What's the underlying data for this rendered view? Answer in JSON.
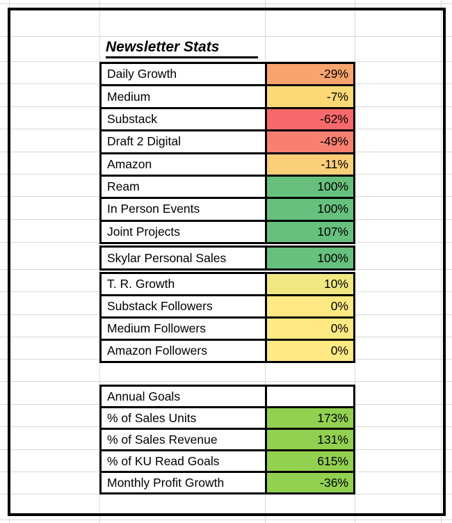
{
  "title": "Newsletter Stats",
  "colors": {
    "border_black": "#000000",
    "gridline_gray": "#d8d8d8",
    "scale_orange": "#F9A46F",
    "scale_gold": "#FDD976",
    "scale_red": "#F8696B",
    "scale_salmon": "#F88070",
    "scale_amber": "#FBCF78",
    "scale_green": "#67C07D",
    "scale_yellow_green": "#F0E783",
    "scale_pale_yellow": "#FFE983",
    "goal_lime": "#92D050",
    "empty_white": "#FFFFFF"
  },
  "tables": [
    {
      "name": "growth-stats",
      "rows": [
        {
          "label": "Daily Growth",
          "value": "-29%",
          "color": "#F9A46F"
        },
        {
          "label": "Medium",
          "value": "-7%",
          "color": "#FDD976"
        },
        {
          "label": "Substack",
          "value": "-62%",
          "color": "#F8696B"
        },
        {
          "label": "Draft 2 Digital",
          "value": "-49%",
          "color": "#F88070"
        },
        {
          "label": "Amazon",
          "value": "-11%",
          "color": "#FBCF78"
        },
        {
          "label": "Ream",
          "value": "100%",
          "color": "#67C07D"
        },
        {
          "label": "In Person Events",
          "value": "100%",
          "color": "#67C07D"
        },
        {
          "label": "Joint Projects",
          "value": "107%",
          "color": "#67C07D"
        }
      ]
    },
    {
      "name": "skylar",
      "rows": [
        {
          "label": "Skylar Personal Sales",
          "value": "100%",
          "color": "#67C07D"
        }
      ]
    },
    {
      "name": "followers",
      "rows": [
        {
          "label": "T. R. Growth",
          "value": "10%",
          "color": "#F0E783"
        },
        {
          "label": "Substack Followers",
          "value": "0%",
          "color": "#FFE983"
        },
        {
          "label": "Medium Followers",
          "value": "0%",
          "color": "#FFE983"
        },
        {
          "label": "Amazon Followers",
          "value": "0%",
          "color": "#FFE983"
        }
      ]
    },
    {
      "name": "annual-goals",
      "rows": [
        {
          "label": "Annual Goals",
          "value": "",
          "color": "#FFFFFF"
        },
        {
          "label": "% of Sales Units",
          "value": "173%",
          "color": "#92D050"
        },
        {
          "label": "% of Sales Revenue",
          "value": "131%",
          "color": "#92D050"
        },
        {
          "label": "% of KU Read Goals",
          "value": "615%",
          "color": "#92D050"
        },
        {
          "label": "Monthly Profit Growth",
          "value": "-36%",
          "color": "#92D050"
        }
      ]
    }
  ]
}
